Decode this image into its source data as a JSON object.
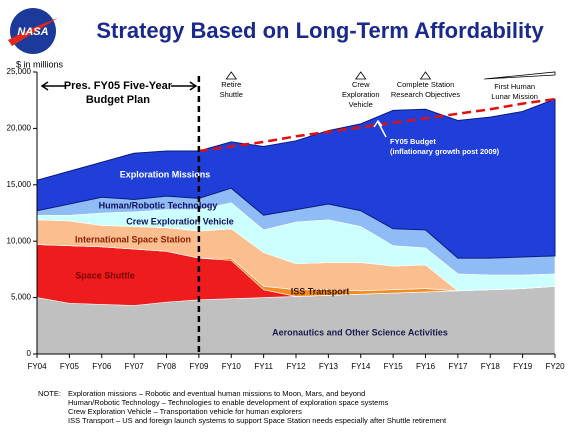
{
  "chart_data": {
    "type": "area",
    "stacked": true,
    "title": "Strategy Based on Long-Term Affordability",
    "logo": "NASA",
    "y_label": "$ in millions",
    "categories": [
      "FY04",
      "FY05",
      "FY06",
      "FY07",
      "FY08",
      "FY09",
      "FY10",
      "FY11",
      "FY12",
      "FY13",
      "FY14",
      "FY15",
      "FY16",
      "FY17",
      "FY18",
      "FY19",
      "FY20"
    ],
    "series": [
      {
        "name": "Aeronautics and Other Science Activities",
        "color": "#c0c0c0",
        "label_color": "#1a1a50",
        "values": [
          5000,
          4500,
          4400,
          4300,
          4600,
          4800,
          4900,
          5000,
          5100,
          5200,
          5300,
          5400,
          5500,
          5600,
          5700,
          5800,
          6000
        ]
      },
      {
        "name": "Space Shuttle",
        "color": "#ee1c1c",
        "label_color": "#7a0000",
        "values": [
          4700,
          5100,
          5100,
          5000,
          4500,
          3700,
          3400,
          700,
          0,
          0,
          0,
          0,
          0,
          0,
          0,
          0,
          0
        ]
      },
      {
        "name": "ISS Transport",
        "color": "#f58a1f",
        "label_color": "#3a1a00",
        "values": [
          0,
          0,
          0,
          0,
          0,
          0,
          200,
          300,
          600,
          500,
          300,
          300,
          300,
          0,
          0,
          0,
          0
        ]
      },
      {
        "name": "International Space Station",
        "color": "#fbbf8f",
        "label_color": "#8a1a00",
        "values": [
          2200,
          2200,
          1900,
          2000,
          2100,
          2400,
          2600,
          3000,
          2300,
          2400,
          2500,
          2100,
          2100,
          0,
          0,
          0,
          0
        ]
      },
      {
        "name": "Crew Exploration Vehicle",
        "color": "#ccffff",
        "label_color": "#101060",
        "values": [
          400,
          500,
          1100,
          1300,
          1600,
          1900,
          2300,
          2000,
          3700,
          3800,
          3200,
          1800,
          1500,
          1500,
          1300,
          1200,
          1100
        ]
      },
      {
        "name": "Human/Robotic Technology",
        "color": "#8fbcf5",
        "label_color": "#101060",
        "values": [
          400,
          1000,
          1400,
          1100,
          1200,
          1000,
          1300,
          1300,
          1100,
          1400,
          1400,
          1500,
          1600,
          1400,
          1500,
          1600,
          1600
        ]
      },
      {
        "name": "Exploration Missions",
        "color": "#1f3fd8",
        "label_color": "#ffffff",
        "values": [
          2700,
          2900,
          3100,
          4100,
          4000,
          4200,
          4100,
          6100,
          6100,
          6500,
          7700,
          10500,
          10700,
          12200,
          12500,
          12900,
          13900
        ]
      }
    ],
    "budget_line": {
      "name": "FY05 Budget",
      "note": "(inflationary growth post 2009)",
      "color": "#e01010",
      "values": [
        null,
        null,
        null,
        null,
        null,
        18000,
        18400,
        18800,
        19300,
        19700,
        20100,
        20500,
        20900,
        21300,
        21700,
        22200,
        22600
      ]
    },
    "budget_plan": {
      "x": "FY09",
      "lines": [
        "Pres. FY05 Five-Year",
        "Budget Plan"
      ]
    },
    "milestones": [
      {
        "x": "FY10",
        "lines": [
          "Retire",
          "Shuttle"
        ]
      },
      {
        "x": "FY14",
        "lines": [
          "Crew",
          "Exploration",
          "Vehicle"
        ]
      },
      {
        "x": "FY16",
        "lines": [
          "Complete Station",
          "Research Objectives"
        ]
      },
      {
        "x": "FY19",
        "lines": [
          "First Human",
          "Lunar Mission"
        ]
      }
    ],
    "ylim": [
      0,
      25000
    ],
    "yticks": [
      {
        "value": 0,
        "label": "0"
      },
      {
        "value": 5000,
        "label": "5,000"
      },
      {
        "value": 10000,
        "label": "10,000"
      },
      {
        "value": 15000,
        "label": "15,000"
      },
      {
        "value": 20000,
        "label": "20,000"
      },
      {
        "value": 25000,
        "label": "25,000"
      }
    ],
    "grid": false,
    "notes": {
      "label": "NOTE:",
      "lines": [
        "Exploration missions – Robotic and eventual human missions to Moon, Mars, and beyond",
        "Human/Robotic Technology – Technologies to enable development of exploration space systems",
        "Crew Exploration Vehicle – Transportation vehicle for human explorers",
        "ISS Transport – US and foreign launch systems to support Space Station needs especially after Shuttle retirement"
      ]
    }
  }
}
